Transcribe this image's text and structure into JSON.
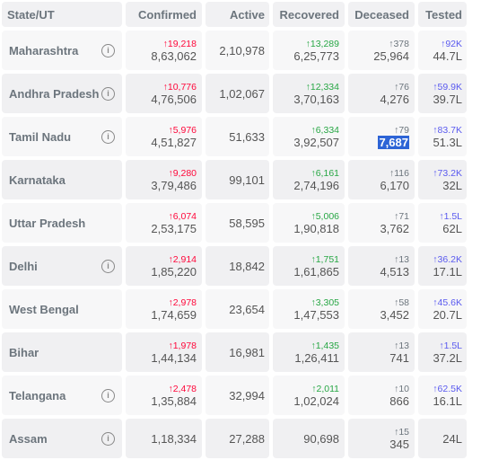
{
  "headers": {
    "state": "State/UT",
    "confirmed": "Confirmed",
    "active": "Active",
    "recovered": "Recovered",
    "deceased": "Deceased",
    "tested": "Tested"
  },
  "rows": [
    {
      "state": "Maharashtra",
      "info": true,
      "confirmed_delta": "↑19,218",
      "confirmed": "8,63,062",
      "active": "2,10,978",
      "recovered_delta": "↑13,289",
      "recovered": "6,25,773",
      "deceased_delta": "↑378",
      "deceased": "25,964",
      "tested_delta": "↑92K",
      "tested": "44.7L"
    },
    {
      "state": "Andhra Pradesh",
      "info": true,
      "confirmed_delta": "↑10,776",
      "confirmed": "4,76,506",
      "active": "1,02,067",
      "recovered_delta": "↑12,334",
      "recovered": "3,70,163",
      "deceased_delta": "↑76",
      "deceased": "4,276",
      "tested_delta": "↑59.9K",
      "tested": "39.7L"
    },
    {
      "state": "Tamil Nadu",
      "info": true,
      "confirmed_delta": "↑5,976",
      "confirmed": "4,51,827",
      "active": "51,633",
      "recovered_delta": "↑6,334",
      "recovered": "3,92,507",
      "deceased_delta": "↑79",
      "deceased": "7,687",
      "tested_delta": "↑83.7K",
      "tested": "51.3L"
    },
    {
      "state": "Karnataka",
      "info": false,
      "confirmed_delta": "↑9,280",
      "confirmed": "3,79,486",
      "active": "99,101",
      "recovered_delta": "↑6,161",
      "recovered": "2,74,196",
      "deceased_delta": "↑116",
      "deceased": "6,170",
      "tested_delta": "↑73.2K",
      "tested": "32L"
    },
    {
      "state": "Uttar Pradesh",
      "info": false,
      "confirmed_delta": "↑6,074",
      "confirmed": "2,53,175",
      "active": "58,595",
      "recovered_delta": "↑5,006",
      "recovered": "1,90,818",
      "deceased_delta": "↑71",
      "deceased": "3,762",
      "tested_delta": "↑1.5L",
      "tested": "62L"
    },
    {
      "state": "Delhi",
      "info": true,
      "confirmed_delta": "↑2,914",
      "confirmed": "1,85,220",
      "active": "18,842",
      "recovered_delta": "↑1,751",
      "recovered": "1,61,865",
      "deceased_delta": "↑13",
      "deceased": "4,513",
      "tested_delta": "↑36.2K",
      "tested": "17.1L"
    },
    {
      "state": "West Bengal",
      "info": false,
      "confirmed_delta": "↑2,978",
      "confirmed": "1,74,659",
      "active": "23,654",
      "recovered_delta": "↑3,305",
      "recovered": "1,47,553",
      "deceased_delta": "↑58",
      "deceased": "3,452",
      "tested_delta": "↑45.6K",
      "tested": "20.7L"
    },
    {
      "state": "Bihar",
      "info": false,
      "confirmed_delta": "↑1,978",
      "confirmed": "1,44,134",
      "active": "16,981",
      "recovered_delta": "↑1,435",
      "recovered": "1,26,411",
      "deceased_delta": "↑13",
      "deceased": "741",
      "tested_delta": "↑1.5L",
      "tested": "37.2L"
    },
    {
      "state": "Telangana",
      "info": true,
      "confirmed_delta": "↑2,478",
      "confirmed": "1,35,884",
      "active": "32,994",
      "recovered_delta": "↑2,011",
      "recovered": "1,02,024",
      "deceased_delta": "↑10",
      "deceased": "866",
      "tested_delta": "↑62.5K",
      "tested": "16.1L"
    },
    {
      "state": "Assam",
      "info": true,
      "confirmed_delta": "",
      "confirmed": "1,18,334",
      "active": "27,288",
      "recovered_delta": "",
      "recovered": "90,698",
      "deceased_delta": "↑15",
      "deceased": "345",
      "tested_delta": "",
      "tested": "24L"
    }
  ],
  "highlight": {
    "row": 2,
    "field": "deceased"
  },
  "icons": {
    "info": "info-icon"
  },
  "colors": {
    "confirmed_delta": "#ff073a",
    "recovered_delta": "#28a745",
    "deceased_delta": "#6c757d",
    "tested_delta": "#5a5aef",
    "highlight": "#2d64d6"
  }
}
